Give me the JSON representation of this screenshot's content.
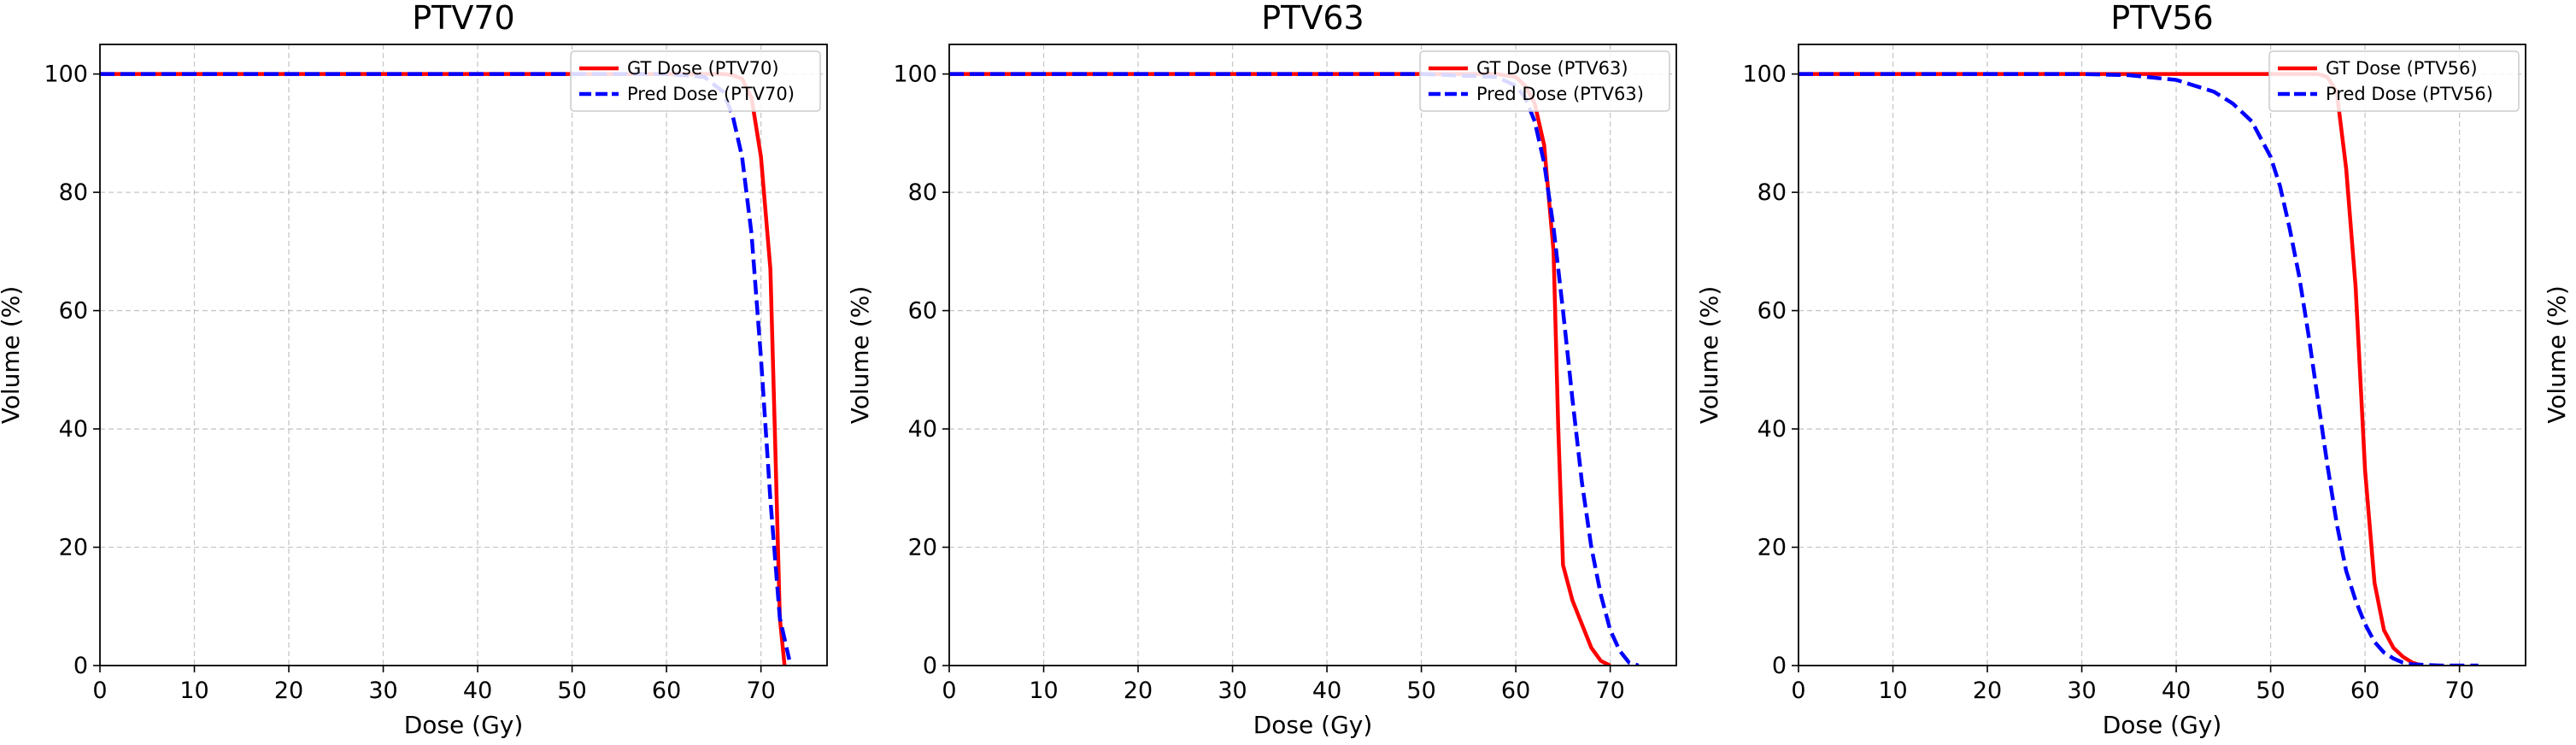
{
  "chart_data": [
    {
      "type": "line",
      "title": "PTV70",
      "xlabel": "Dose (Gy)",
      "ylabel": "Volume (%)",
      "xlim": [
        0,
        77
      ],
      "ylim": [
        0,
        105
      ],
      "xticks": [
        0,
        10,
        20,
        30,
        40,
        50,
        60,
        70
      ],
      "yticks": [
        0,
        20,
        40,
        60,
        80,
        100
      ],
      "grid": true,
      "legend_position": "top-right",
      "series": [
        {
          "name": "GT Dose (PTV70)",
          "color": "#ff0000",
          "style": "solid",
          "x": [
            0,
            10,
            20,
            30,
            40,
            50,
            60,
            66,
            67,
            68,
            69,
            70,
            71,
            71.5,
            72,
            72.5
          ],
          "y": [
            100,
            100,
            100,
            100,
            100,
            100,
            100,
            100,
            99.8,
            99.2,
            96,
            86,
            67,
            38,
            8,
            0
          ]
        },
        {
          "name": "Pred Dose (PTV70)",
          "color": "#0000ff",
          "style": "dashed",
          "x": [
            0,
            10,
            20,
            30,
            40,
            50,
            60,
            64,
            66,
            67,
            68,
            69,
            70,
            71,
            72,
            73
          ],
          "y": [
            100,
            100,
            100,
            100,
            100,
            100,
            100,
            99.5,
            97,
            93,
            86,
            73,
            52,
            28,
            8,
            1
          ]
        }
      ]
    },
    {
      "type": "line",
      "title": "PTV63",
      "xlabel": "Dose (Gy)",
      "ylabel": "Volume (%)",
      "xlim": [
        0,
        77
      ],
      "ylim": [
        0,
        105
      ],
      "xticks": [
        0,
        10,
        20,
        30,
        40,
        50,
        60,
        70
      ],
      "yticks": [
        0,
        20,
        40,
        60,
        80,
        100
      ],
      "grid": true,
      "legend_position": "top-right",
      "series": [
        {
          "name": "GT Dose (PTV63)",
          "color": "#ff0000",
          "style": "solid",
          "x": [
            0,
            10,
            20,
            30,
            40,
            50,
            58,
            60,
            61,
            62,
            63,
            64,
            64.5,
            65,
            66,
            67,
            68,
            69,
            70
          ],
          "y": [
            100,
            100,
            100,
            100,
            100,
            100,
            100,
            99.5,
            98,
            95,
            88,
            70,
            40,
            17,
            11,
            7,
            3,
            0.8,
            0
          ]
        },
        {
          "name": "Pred Dose (PTV63)",
          "color": "#0000ff",
          "style": "dashed",
          "x": [
            0,
            10,
            20,
            30,
            40,
            50,
            58,
            60,
            61,
            62,
            63,
            64,
            65,
            66,
            67,
            68,
            69,
            70,
            71,
            72,
            73
          ],
          "y": [
            100,
            100,
            100,
            100,
            100,
            100,
            99.5,
            98,
            96,
            92,
            85,
            74,
            60,
            45,
            31,
            20,
            12,
            6,
            2.5,
            0.5,
            0
          ]
        }
      ]
    },
    {
      "type": "line",
      "title": "PTV56",
      "xlabel": "Dose (Gy)",
      "ylabel": "Volume (%)",
      "xlim": [
        0,
        77
      ],
      "ylim": [
        0,
        105
      ],
      "xticks": [
        0,
        10,
        20,
        30,
        40,
        50,
        60,
        70
      ],
      "yticks": [
        0,
        20,
        40,
        60,
        80,
        100
      ],
      "grid": true,
      "legend_position": "top-right",
      "series": [
        {
          "name": "GT Dose (PTV56)",
          "color": "#ff0000",
          "style": "solid",
          "x": [
            0,
            10,
            20,
            30,
            40,
            50,
            55,
            56,
            57,
            58,
            59,
            60,
            61,
            62,
            63,
            64,
            65,
            66
          ],
          "y": [
            100,
            100,
            100,
            100,
            100,
            100,
            100,
            99.5,
            97,
            84,
            64,
            33,
            14,
            6,
            3,
            1.5,
            0.5,
            0
          ]
        },
        {
          "name": "Pred Dose (PTV56)",
          "color": "#0000ff",
          "style": "dashed",
          "x": [
            0,
            10,
            20,
            30,
            35,
            40,
            44,
            46,
            48,
            50,
            51,
            52,
            53,
            54,
            55,
            56,
            57,
            58,
            59,
            60,
            61,
            62,
            63,
            64,
            65,
            68,
            72
          ],
          "y": [
            100,
            100,
            100,
            100,
            99.8,
            99,
            97,
            95,
            92,
            86,
            81,
            74,
            66,
            56,
            45,
            34,
            24,
            16,
            11,
            7,
            4,
            2.2,
            1.2,
            0.5,
            0.2,
            0,
            0
          ]
        }
      ]
    }
  ]
}
